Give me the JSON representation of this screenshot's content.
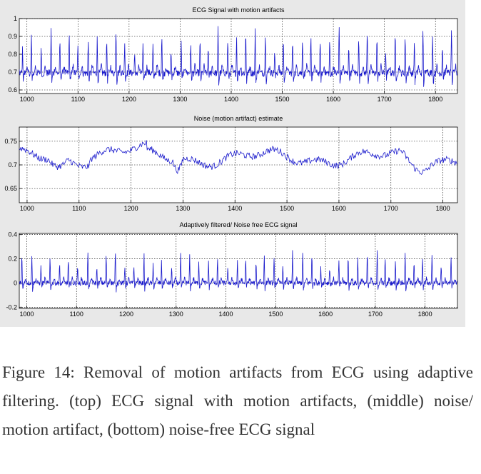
{
  "caption": "Figure 14: Removal of motion artifacts from ECG using adaptive filtering. (top) ECG signal with motion artifacts, (middle) noise/ motion artifact, (bottom) noise-free ECG signal",
  "chart_data": [
    {
      "type": "line",
      "title": "ECG Signal with motion artifacts",
      "xlim": [
        985,
        1843
      ],
      "ylim": [
        0.58,
        1.0
      ],
      "xticks": [
        1000,
        1100,
        1200,
        1300,
        1400,
        1500,
        1600,
        1700,
        1800
      ],
      "yticks": [
        0.6,
        0.7,
        0.8,
        0.9,
        1
      ],
      "ytick_labels": [
        "0.6",
        "0.7",
        "0.8",
        "0.9",
        "1"
      ],
      "grid": true,
      "signal": {
        "baseline": 0.695,
        "beats": 47,
        "peak_max": 1.0
      }
    },
    {
      "type": "line",
      "title": "Noise (motion artifact) estimate",
      "xlim": [
        985,
        1828
      ],
      "ylim": [
        0.62,
        0.78
      ],
      "xticks": [
        1000,
        1100,
        1200,
        1300,
        1400,
        1500,
        1600,
        1700,
        1800
      ],
      "yticks": [
        0.65,
        0.7,
        0.75
      ],
      "ytick_labels": [
        "0.65",
        "0.7",
        "0.75"
      ],
      "grid": true,
      "signal": {
        "baseline": 0.715,
        "low_segments": [
          [
            1040,
            1080
          ],
          [
            1280,
            1300
          ],
          [
            1720,
            1780
          ]
        ]
      }
    },
    {
      "type": "line",
      "title": "Adaptively filtered/ Noise free ECG signal",
      "xlim": [
        985,
        1865
      ],
      "ylim": [
        -0.21,
        0.41
      ],
      "xticks": [
        1000,
        1100,
        1200,
        1300,
        1400,
        1500,
        1600,
        1700,
        1800
      ],
      "yticks": [
        -0.2,
        0,
        0.2,
        0.4
      ],
      "ytick_labels": [
        "-0.2",
        "0",
        "0.2",
        "0.4"
      ],
      "grid": true,
      "signal": {
        "baseline": 0.0,
        "beats": 47,
        "peak_max": 0.3
      }
    }
  ]
}
